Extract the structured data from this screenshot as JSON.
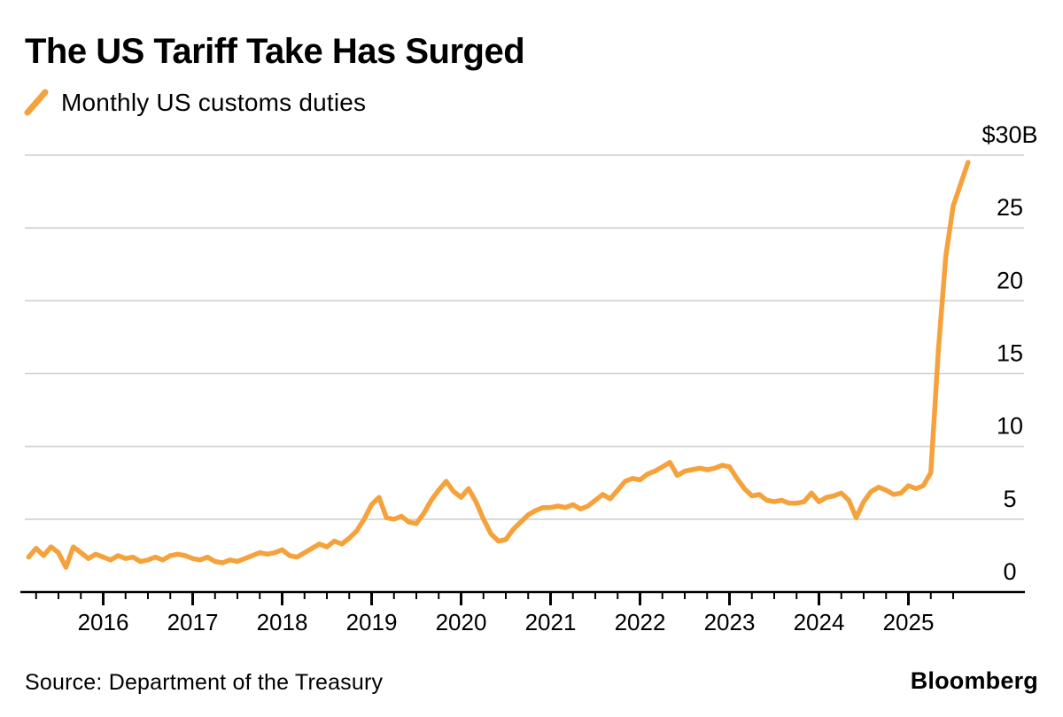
{
  "header": {
    "title": "The US Tariff Take Has Surged"
  },
  "legend": {
    "label": "Monthly US customs duties"
  },
  "footer": {
    "source": "Source: Department of the Treasury",
    "brand": "Bloomberg"
  },
  "colors": {
    "line": "#F5A23C",
    "grid": "#CFCFCC",
    "axis": "#000000",
    "text": "#000000",
    "background": "#FFFFFF"
  },
  "chart_data": {
    "type": "line",
    "title": "The US Tariff Take Has Surged",
    "unit": "billions USD per month",
    "grid": "horizontal",
    "legend_position": "top-left",
    "ylim": [
      0,
      30
    ],
    "y_ticks": [
      {
        "value": 0,
        "label": "0"
      },
      {
        "value": 5,
        "label": "5"
      },
      {
        "value": 10,
        "label": "10"
      },
      {
        "value": 15,
        "label": "15"
      },
      {
        "value": 20,
        "label": "20"
      },
      {
        "value": 25,
        "label": "25"
      },
      {
        "value": 30,
        "label": "$30B"
      }
    ],
    "x_year_labels": [
      "2016",
      "2017",
      "2018",
      "2019",
      "2020",
      "2021",
      "2022",
      "2023",
      "2024",
      "2025"
    ],
    "x_minor_ticks": "quarterly",
    "series": [
      {
        "name": "Monthly US customs duties",
        "color": "#F5A23C",
        "start": "2015-03",
        "end": "2025-09",
        "frequency": "monthly",
        "values": [
          2.4,
          3.0,
          2.5,
          3.1,
          2.7,
          1.7,
          3.1,
          2.7,
          2.3,
          2.6,
          2.4,
          2.2,
          2.5,
          2.3,
          2.4,
          2.1,
          2.2,
          2.4,
          2.2,
          2.5,
          2.6,
          2.5,
          2.3,
          2.2,
          2.4,
          2.1,
          2.0,
          2.2,
          2.1,
          2.3,
          2.5,
          2.7,
          2.6,
          2.7,
          2.9,
          2.5,
          2.4,
          2.7,
          3.0,
          3.3,
          3.1,
          3.5,
          3.3,
          3.7,
          4.2,
          5.0,
          6.0,
          6.5,
          5.1,
          5.0,
          5.2,
          4.8,
          4.7,
          5.4,
          6.3,
          7.0,
          7.6,
          6.9,
          6.5,
          7.1,
          6.2,
          5.0,
          4.0,
          3.5,
          3.6,
          4.3,
          4.8,
          5.3,
          5.6,
          5.8,
          5.8,
          5.9,
          5.8,
          6.0,
          5.7,
          5.9,
          6.3,
          6.7,
          6.4,
          7.0,
          7.6,
          7.8,
          7.7,
          8.1,
          8.3,
          8.6,
          8.9,
          8.0,
          8.3,
          8.4,
          8.5,
          8.4,
          8.5,
          8.7,
          8.6,
          7.8,
          7.1,
          6.6,
          6.7,
          6.3,
          6.2,
          6.3,
          6.1,
          6.1,
          6.2,
          6.8,
          6.2,
          6.5,
          6.6,
          6.8,
          6.3,
          5.1,
          6.2,
          6.9,
          7.2,
          7.0,
          6.7,
          6.8,
          7.3,
          7.1,
          7.3,
          8.2,
          16.5,
          23.0,
          26.5,
          28.0,
          29.5
        ]
      }
    ]
  }
}
